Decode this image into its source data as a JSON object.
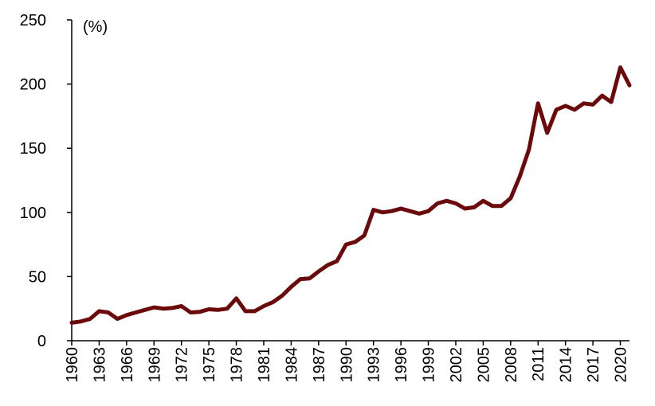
{
  "chart_data": {
    "type": "line",
    "unit_label": "(%)",
    "ylim": [
      0,
      250
    ],
    "yticks": [
      0,
      50,
      100,
      150,
      200,
      250
    ],
    "xlim": [
      1960,
      2021
    ],
    "xticks": [
      1960,
      1963,
      1966,
      1969,
      1972,
      1975,
      1978,
      1981,
      1984,
      1987,
      1990,
      1993,
      1996,
      1999,
      2002,
      2005,
      2008,
      2011,
      2014,
      2017,
      2020
    ],
    "grid": false,
    "line_color": "#6b0a0a",
    "series": [
      {
        "x": [
          1960,
          1961,
          1962,
          1963,
          1964,
          1965,
          1966,
          1967,
          1968,
          1969,
          1970,
          1971,
          1972,
          1973,
          1974,
          1975,
          1976,
          1977,
          1978,
          1979,
          1980,
          1981,
          1982,
          1983,
          1984,
          1985,
          1986,
          1987,
          1988,
          1989,
          1990,
          1991,
          1992,
          1993,
          1994,
          1995,
          1996,
          1997,
          1998,
          1999,
          2000,
          2001,
          2002,
          2003,
          2004,
          2005,
          2006,
          2007,
          2008,
          2009,
          2010,
          2011,
          2012,
          2013,
          2014,
          2015,
          2016,
          2017,
          2018,
          2019,
          2020,
          2021
        ],
        "values": [
          14,
          15,
          17,
          23,
          22,
          17,
          20,
          22,
          24,
          26,
          25,
          25.5,
          27,
          22,
          22.5,
          24.5,
          24,
          25,
          33,
          23,
          23,
          27,
          30,
          35,
          42,
          48,
          48.5,
          54,
          59,
          62,
          75,
          77,
          82,
          102,
          100,
          101,
          103,
          101,
          99,
          101,
          107,
          109,
          107,
          103,
          104,
          109,
          105,
          105,
          111,
          128,
          149,
          185,
          162,
          180,
          183,
          180,
          185,
          184,
          191,
          186,
          213,
          199
        ]
      }
    ]
  }
}
